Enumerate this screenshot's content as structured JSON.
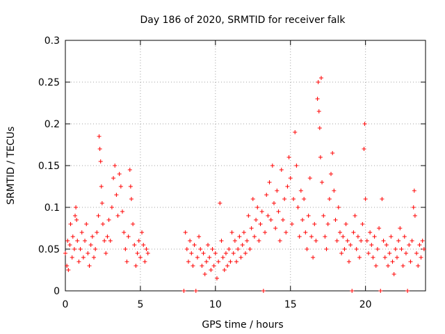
{
  "chart_data": {
    "type": "scatter",
    "title": "Day 186 of 2020, SRMTID for receiver falk",
    "xlabel": "GPS time / hours",
    "ylabel": "SRMTID / TECUs",
    "xlim": [
      0,
      24
    ],
    "ylim": [
      0,
      0.3
    ],
    "x_ticks": [
      0,
      5,
      10,
      15,
      20
    ],
    "x_tick_labels": [
      "0",
      "5",
      "10",
      "15",
      "20"
    ],
    "y_ticks": [
      0,
      0.05,
      0.1,
      0.15,
      0.2,
      0.25,
      0.3
    ],
    "y_tick_labels": [
      "0",
      "0.05",
      "0.1",
      "0.15",
      "0.2",
      "0.25",
      "0.3"
    ],
    "grid": true,
    "marker": "+",
    "series_color": "#ff0000",
    "series": [
      {
        "name": "SRMTID",
        "points": [
          [
            0.0,
            0.045
          ],
          [
            0.1,
            0.03
          ],
          [
            0.15,
            0.06
          ],
          [
            0.2,
            0.025
          ],
          [
            0.3,
            0.055
          ],
          [
            0.35,
            0.08
          ],
          [
            0.45,
            0.04
          ],
          [
            0.5,
            0.065
          ],
          [
            0.6,
            0.05
          ],
          [
            0.65,
            0.09
          ],
          [
            0.7,
            0.1
          ],
          [
            0.75,
            0.085
          ],
          [
            0.8,
            0.06
          ],
          [
            0.9,
            0.035
          ],
          [
            1.0,
            0.05
          ],
          [
            1.1,
            0.07
          ],
          [
            1.2,
            0.04
          ],
          [
            1.3,
            0.06
          ],
          [
            1.4,
            0.08
          ],
          [
            1.5,
            0.045
          ],
          [
            1.6,
            0.03
          ],
          [
            1.7,
            0.055
          ],
          [
            1.8,
            0.065
          ],
          [
            1.9,
            0.04
          ],
          [
            2.0,
            0.05
          ],
          [
            2.1,
            0.07
          ],
          [
            2.2,
            0.09
          ],
          [
            2.25,
            0.185
          ],
          [
            2.3,
            0.17
          ],
          [
            2.35,
            0.155
          ],
          [
            2.4,
            0.125
          ],
          [
            2.45,
            0.105
          ],
          [
            2.5,
            0.08
          ],
          [
            2.6,
            0.06
          ],
          [
            2.7,
            0.045
          ],
          [
            2.8,
            0.065
          ],
          [
            2.9,
            0.085
          ],
          [
            3.0,
            0.06
          ],
          [
            3.1,
            0.1
          ],
          [
            3.2,
            0.135
          ],
          [
            3.3,
            0.15
          ],
          [
            3.4,
            0.115
          ],
          [
            3.5,
            0.09
          ],
          [
            3.6,
            0.14
          ],
          [
            3.7,
            0.125
          ],
          [
            3.8,
            0.095
          ],
          [
            3.9,
            0.07
          ],
          [
            4.0,
            0.05
          ],
          [
            4.1,
            0.035
          ],
          [
            4.2,
            0.065
          ],
          [
            4.3,
            0.145
          ],
          [
            4.35,
            0.125
          ],
          [
            4.4,
            0.11
          ],
          [
            4.5,
            0.08
          ],
          [
            4.6,
            0.055
          ],
          [
            4.7,
            0.03
          ],
          [
            4.8,
            0.045
          ],
          [
            4.9,
            0.06
          ],
          [
            5.0,
            0.04
          ],
          [
            5.1,
            0.07
          ],
          [
            5.2,
            0.055
          ],
          [
            5.3,
            0.035
          ],
          [
            5.4,
            0.05
          ],
          [
            5.5,
            0.045
          ],
          [
            7.9,
            0.0
          ],
          [
            8.0,
            0.07
          ],
          [
            8.1,
            0.05
          ],
          [
            8.2,
            0.035
          ],
          [
            8.3,
            0.06
          ],
          [
            8.4,
            0.045
          ],
          [
            8.5,
            0.03
          ],
          [
            8.6,
            0.055
          ],
          [
            8.7,
            0.0
          ],
          [
            8.8,
            0.04
          ],
          [
            8.9,
            0.065
          ],
          [
            9.0,
            0.05
          ],
          [
            9.1,
            0.03
          ],
          [
            9.2,
            0.045
          ],
          [
            9.3,
            0.02
          ],
          [
            9.4,
            0.035
          ],
          [
            9.5,
            0.055
          ],
          [
            9.6,
            0.04
          ],
          [
            9.7,
            0.025
          ],
          [
            9.8,
            0.05
          ],
          [
            9.9,
            0.03
          ],
          [
            10.0,
            0.045
          ],
          [
            10.1,
            0.015
          ],
          [
            10.2,
            0.035
          ],
          [
            10.3,
            0.105
          ],
          [
            10.4,
            0.06
          ],
          [
            10.5,
            0.04
          ],
          [
            10.6,
            0.025
          ],
          [
            10.7,
            0.045
          ],
          [
            10.8,
            0.03
          ],
          [
            10.9,
            0.05
          ],
          [
            11.0,
            0.035
          ],
          [
            11.1,
            0.07
          ],
          [
            11.2,
            0.045
          ],
          [
            11.3,
            0.06
          ],
          [
            11.4,
            0.035
          ],
          [
            11.5,
            0.05
          ],
          [
            11.6,
            0.065
          ],
          [
            11.7,
            0.04
          ],
          [
            11.8,
            0.055
          ],
          [
            11.9,
            0.07
          ],
          [
            12.0,
            0.045
          ],
          [
            12.1,
            0.06
          ],
          [
            12.2,
            0.09
          ],
          [
            12.3,
            0.05
          ],
          [
            12.4,
            0.075
          ],
          [
            12.5,
            0.11
          ],
          [
            12.6,
            0.065
          ],
          [
            12.7,
            0.085
          ],
          [
            12.8,
            0.1
          ],
          [
            12.9,
            0.06
          ],
          [
            13.0,
            0.08
          ],
          [
            13.1,
            0.095
          ],
          [
            13.2,
            0.0
          ],
          [
            13.3,
            0.07
          ],
          [
            13.4,
            0.115
          ],
          [
            13.5,
            0.09
          ],
          [
            13.6,
            0.13
          ],
          [
            13.7,
            0.085
          ],
          [
            13.8,
            0.15
          ],
          [
            13.9,
            0.105
          ],
          [
            14.0,
            0.075
          ],
          [
            14.1,
            0.12
          ],
          [
            14.2,
            0.095
          ],
          [
            14.3,
            0.06
          ],
          [
            14.4,
            0.145
          ],
          [
            14.5,
            0.085
          ],
          [
            14.6,
            0.11
          ],
          [
            14.7,
            0.07
          ],
          [
            14.8,
            0.125
          ],
          [
            14.9,
            0.16
          ],
          [
            15.0,
            0.135
          ],
          [
            15.1,
            0.08
          ],
          [
            15.2,
            0.11
          ],
          [
            15.3,
            0.19
          ],
          [
            15.4,
            0.15
          ],
          [
            15.5,
            0.1
          ],
          [
            15.6,
            0.065
          ],
          [
            15.7,
            0.12
          ],
          [
            15.8,
            0.085
          ],
          [
            15.9,
            0.11
          ],
          [
            16.0,
            0.07
          ],
          [
            16.1,
            0.05
          ],
          [
            16.2,
            0.09
          ],
          [
            16.3,
            0.135
          ],
          [
            16.4,
            0.065
          ],
          [
            16.5,
            0.04
          ],
          [
            16.6,
            0.08
          ],
          [
            16.7,
            0.06
          ],
          [
            16.8,
            0.23
          ],
          [
            16.85,
            0.25
          ],
          [
            16.9,
            0.215
          ],
          [
            16.95,
            0.195
          ],
          [
            17.0,
            0.16
          ],
          [
            17.05,
            0.255
          ],
          [
            17.1,
            0.13
          ],
          [
            17.2,
            0.09
          ],
          [
            17.3,
            0.065
          ],
          [
            17.4,
            0.05
          ],
          [
            17.5,
            0.08
          ],
          [
            17.6,
            0.11
          ],
          [
            17.7,
            0.14
          ],
          [
            17.8,
            0.165
          ],
          [
            17.9,
            0.12
          ],
          [
            18.0,
            0.085
          ],
          [
            18.1,
            0.06
          ],
          [
            18.2,
            0.1
          ],
          [
            18.3,
            0.07
          ],
          [
            18.4,
            0.045
          ],
          [
            18.5,
            0.065
          ],
          [
            18.6,
            0.05
          ],
          [
            18.7,
            0.08
          ],
          [
            18.8,
            0.06
          ],
          [
            18.9,
            0.035
          ],
          [
            19.0,
            0.055
          ],
          [
            19.1,
            0.0
          ],
          [
            19.2,
            0.07
          ],
          [
            19.3,
            0.09
          ],
          [
            19.4,
            0.05
          ],
          [
            19.5,
            0.065
          ],
          [
            19.6,
            0.04
          ],
          [
            19.7,
            0.06
          ],
          [
            19.8,
            0.08
          ],
          [
            19.9,
            0.17
          ],
          [
            19.95,
            0.2
          ],
          [
            20.0,
            0.11
          ],
          [
            20.1,
            0.06
          ],
          [
            20.2,
            0.045
          ],
          [
            20.3,
            0.07
          ],
          [
            20.4,
            0.055
          ],
          [
            20.5,
            0.04
          ],
          [
            20.6,
            0.065
          ],
          [
            20.7,
            0.03
          ],
          [
            20.8,
            0.05
          ],
          [
            20.9,
            0.075
          ],
          [
            21.0,
            0.0
          ],
          [
            21.1,
            0.11
          ],
          [
            21.2,
            0.06
          ],
          [
            21.3,
            0.04
          ],
          [
            21.4,
            0.055
          ],
          [
            21.5,
            0.03
          ],
          [
            21.6,
            0.045
          ],
          [
            21.7,
            0.065
          ],
          [
            21.8,
            0.035
          ],
          [
            21.9,
            0.02
          ],
          [
            22.0,
            0.05
          ],
          [
            22.1,
            0.04
          ],
          [
            22.2,
            0.06
          ],
          [
            22.3,
            0.075
          ],
          [
            22.4,
            0.05
          ],
          [
            22.5,
            0.03
          ],
          [
            22.6,
            0.065
          ],
          [
            22.7,
            0.045
          ],
          [
            22.8,
            0.0
          ],
          [
            22.9,
            0.055
          ],
          [
            23.0,
            0.035
          ],
          [
            23.1,
            0.06
          ],
          [
            23.2,
            0.1
          ],
          [
            23.25,
            0.12
          ],
          [
            23.3,
            0.09
          ],
          [
            23.4,
            0.045
          ],
          [
            23.5,
            0.03
          ],
          [
            23.6,
            0.055
          ],
          [
            23.7,
            0.04
          ],
          [
            23.8,
            0.06
          ],
          [
            23.9,
            0.05
          ]
        ]
      }
    ]
  }
}
